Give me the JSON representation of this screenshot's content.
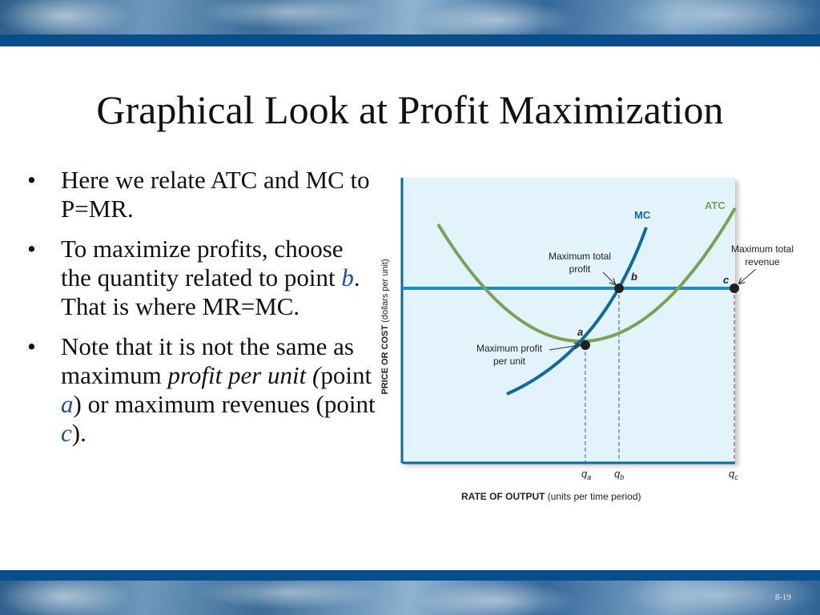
{
  "slide": {
    "title": "Graphical Look at Profit Maximization",
    "number": "8-19"
  },
  "bullets": [
    {
      "parts": [
        {
          "text": "Here we relate ATC and MC to P=MR."
        }
      ]
    },
    {
      "parts": [
        {
          "text": "To maximize profits, choose the quantity related to  point "
        },
        {
          "text": "b",
          "style": "hl"
        },
        {
          "text": ". That is where MR=MC."
        }
      ]
    },
    {
      "parts": [
        {
          "text": "Note that it is not the same as maximum "
        },
        {
          "text": "profit per unit (",
          "style": "it"
        },
        {
          "text": "point "
        },
        {
          "text": "a",
          "style": "hl"
        },
        {
          "text": ") or maximum revenues (point "
        },
        {
          "text": "c",
          "style": "hl"
        },
        {
          "text": ")."
        }
      ]
    }
  ],
  "diagram": {
    "ylabel_bold": "PRICE OR COST",
    "ylabel_rest": " (dollars per unit)",
    "xlabel_bold": "RATE OF OUTPUT",
    "xlabel_rest": " (units per time period)",
    "curves": {
      "mc": {
        "label": "MC",
        "color": "#0e6a9c"
      },
      "atc": {
        "label": "ATC",
        "color": "#7aa05a"
      },
      "price_line_color": "#1c8ec2"
    },
    "points": {
      "a": "a",
      "b": "b",
      "c": "c"
    },
    "ticks": {
      "qa_main": "q",
      "qa_sub": "a",
      "qb_main": "q",
      "qb_sub": "b",
      "qc_main": "q",
      "qc_sub": "c"
    },
    "annotations": {
      "max_total_profit_1": "Maximum total",
      "max_total_profit_2": "profit",
      "max_total_revenue_1": "Maximum total",
      "max_total_revenue_2": "revenue",
      "max_profit_unit_1": "Maximum profit",
      "max_profit_unit_2": "per unit"
    }
  }
}
